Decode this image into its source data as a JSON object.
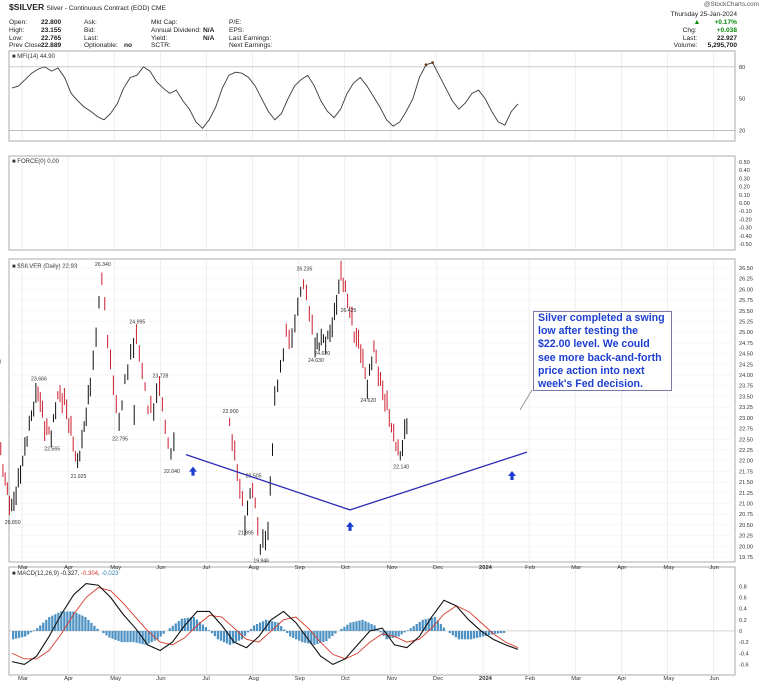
{
  "header": {
    "symbol": "$SILVER",
    "name": "Silver - Continuous Contract (EOD) CME",
    "watermark": "@StockCharts.com",
    "date": "Thursday 25-Jan-2024",
    "quote_left": [
      {
        "label": "Open:",
        "value": "22.800"
      },
      {
        "label": "High:",
        "value": "23.155"
      },
      {
        "label": "Low:",
        "value": "22.765"
      },
      {
        "label": "Prev Close:",
        "value": "22.889"
      }
    ],
    "quote_mid1": [
      "Ask:",
      "Bid:",
      "Last:",
      "Optionable:"
    ],
    "optionable_value": "no",
    "quote_mid2": [
      {
        "label": "Mkt Cap:",
        "value": ""
      },
      {
        "label": "Annual Dividend:",
        "value": "N/A"
      },
      {
        "label": "Yield:",
        "value": "N/A"
      },
      {
        "label": "SCTR:",
        "value": ""
      }
    ],
    "quote_mid3": [
      "P/E:",
      "EPS:",
      "Last Earnings:",
      "Next Earnings:"
    ],
    "quote_right": [
      {
        "label": "",
        "value": "+0.17%"
      },
      {
        "label": "Chg:",
        "value": "+0.038"
      },
      {
        "label": "Last:",
        "value": "22.927"
      },
      {
        "label": "Volume:",
        "value": "5,295,700"
      }
    ]
  },
  "panel_labels": {
    "mfi": "MFI(14) 44.90",
    "force": "FORCE(0) 0.00",
    "price": "$SILVER (Daily) 22.93",
    "macd_name": "MACD(12,26,9)",
    "macd_v1": "-0.327",
    "macd_v2": "-0.304",
    "macd_v3": "-0.023"
  },
  "callout": {
    "text": "Silver completed a swing low after testing the $22.00 level. We could see more back-and-forth price action into next week's Fed decision."
  },
  "chart_data": [
    {
      "type": "line",
      "title": "$SILVER (Daily) 22.93",
      "subtitle": "Silver - Continuous Contract (EOD) CME",
      "x": [
        "Mar",
        "Apr",
        "May",
        "Jun",
        "Jul",
        "Aug",
        "Sep",
        "Oct",
        "Nov",
        "Dec",
        "2024",
        "Feb",
        "Mar",
        "Apr",
        "May",
        "Jun"
      ],
      "ylim": [
        19.75,
        26.5
      ],
      "y_ticks": [
        19.75,
        20.0,
        20.25,
        20.5,
        20.75,
        21.0,
        21.25,
        21.5,
        21.75,
        22.0,
        22.25,
        22.5,
        22.75,
        23.0,
        23.25,
        23.5,
        23.75,
        24.0,
        24.25,
        24.5,
        24.75,
        25.0,
        25.25,
        25.5,
        25.75,
        26.0,
        26.25,
        26.5
      ],
      "price_path": [
        [
          "Mar",
          22.9
        ],
        [
          "Mar",
          21.8
        ],
        [
          "Mar",
          20.6
        ],
        [
          "Mar",
          21.4
        ],
        [
          "Mar",
          19.95
        ],
        [
          "Mar",
          20.3
        ],
        [
          "Apr",
          23.4
        ],
        [
          "Apr",
          24.1
        ],
        [
          "Apr",
          25.0
        ],
        [
          "Apr",
          24.9
        ],
        [
          "Apr",
          25.7
        ],
        [
          "Apr",
          26.235
        ],
        [
          "Apr",
          25.5
        ],
        [
          "Apr",
          24.63
        ],
        [
          "May",
          24.8
        ],
        [
          "May",
          24.82
        ],
        [
          "May",
          25.4
        ],
        [
          "May",
          26.425
        ],
        [
          "May",
          25.8
        ],
        [
          "May",
          25.0
        ],
        [
          "May",
          24.6
        ],
        [
          "Jun",
          23.7
        ],
        [
          "Jun",
          24.62
        ],
        [
          "Jun",
          23.8
        ],
        [
          "Jun",
          23.3
        ],
        [
          "Jun",
          22.6
        ],
        [
          "Jun",
          22.14
        ],
        [
          "Jun",
          22.9
        ],
        [
          "Jul",
          23.3
        ],
        [
          "Jul",
          24.1
        ],
        [
          "Jul",
          24.9
        ],
        [
          "Jul",
          25.475
        ],
        [
          "Jul",
          24.9
        ],
        [
          "Aug",
          24.0
        ],
        [
          "Aug",
          23.4
        ],
        [
          "Aug",
          22.8
        ],
        [
          "Aug",
          22.265
        ],
        [
          "Aug",
          23.0
        ],
        [
          "Aug",
          23.5
        ],
        [
          "Sep",
          24.4
        ],
        [
          "Sep",
          25.0
        ],
        [
          "Sep",
          25.425
        ],
        [
          "Sep",
          24.3
        ],
        [
          "Sep",
          23.2
        ],
        [
          "Sep",
          22.555
        ],
        [
          "Sep",
          23.5
        ],
        [
          "Sep",
          24.06
        ],
        [
          "Oct",
          22.5
        ],
        [
          "Oct",
          21.5
        ],
        [
          "Oct",
          20.85
        ],
        [
          "Oct",
          21.5
        ],
        [
          "Oct",
          22.3
        ],
        [
          "Oct",
          23.1
        ],
        [
          "Oct",
          23.666
        ],
        [
          "Nov",
          22.8
        ],
        [
          "Nov",
          22.565
        ],
        [
          "Nov",
          23.5
        ],
        [
          "Nov",
          23.4
        ],
        [
          "Nov",
          22.7
        ],
        [
          "Nov",
          21.925
        ],
        [
          "Nov",
          22.8
        ],
        [
          "Dec",
          23.8
        ],
        [
          "Dec",
          25.0
        ],
        [
          "Dec",
          26.34
        ],
        [
          "Dec",
          24.8
        ],
        [
          "Dec",
          23.7
        ],
        [
          "Dec",
          22.795
        ],
        [
          "Dec",
          23.8
        ],
        [
          "Dec",
          24.5
        ],
        [
          "2024",
          24.995
        ],
        [
          "2024",
          24.2
        ],
        [
          "2024",
          23.3
        ],
        [
          "2024",
          23.2
        ],
        [
          "2024",
          23.728
        ],
        [
          "2024",
          22.7
        ],
        [
          "2024",
          22.04
        ],
        [
          "2024",
          22.93
        ]
      ],
      "annotations": [
        "22.900",
        "21.995",
        "20.505",
        "19.946",
        "26.235",
        "24.630",
        "24.620",
        "26.425",
        "24.620",
        "22.140",
        "25.475",
        "22.265",
        "25.425",
        "22.555",
        "24.060",
        "20.850",
        "23.666",
        "22.565",
        "21.925",
        "26.340",
        "22.795",
        "24.995",
        "23.728",
        "22.040"
      ],
      "trendline": [
        [
          "Jun",
          22.14
        ],
        [
          "Oct",
          20.85
        ],
        [
          "Feb",
          22.2
        ]
      ],
      "markers": [
        "up arrow at 22.140",
        "up arrow at 20.850",
        "up arrow at 22.040"
      ]
    },
    {
      "type": "line",
      "title": "MFI(14) 44.90",
      "ylim": [
        10,
        95
      ],
      "y_ticks": [
        20,
        50,
        80
      ],
      "series": [
        {
          "name": "MFI(14)",
          "values": [
            60,
            62,
            68,
            74,
            78,
            80,
            76,
            79,
            70,
            55,
            48,
            42,
            38,
            33,
            30,
            36,
            45,
            60,
            70,
            72,
            80,
            76,
            66,
            60,
            55,
            58,
            48,
            40,
            28,
            22,
            30,
            42,
            60,
            72,
            75,
            74,
            70,
            62,
            50,
            38,
            30,
            36,
            50,
            62,
            68,
            72,
            62,
            48,
            38,
            32,
            40,
            55,
            65,
            70,
            62,
            52,
            42,
            30,
            24,
            28,
            38,
            50,
            70,
            82,
            84,
            72,
            60,
            48,
            40,
            46,
            55,
            58,
            50,
            38,
            28,
            25,
            38,
            45
          ]
        }
      ]
    },
    {
      "type": "line",
      "title": "FORCE(0) 0.00",
      "ylim": [
        -0.5,
        0.5
      ],
      "y_ticks": [
        0.5,
        0.4,
        0.3,
        0.2,
        0.1,
        0.0,
        -0.1,
        -0.2,
        -0.3,
        -0.4,
        -0.5
      ]
    },
    {
      "type": "line",
      "title": "MACD(12,26,9) -0.327, -0.304, -0.023",
      "ylim": [
        -0.7,
        0.95
      ],
      "y_ticks": [
        0.8,
        0.6,
        0.4,
        0.2,
        0,
        -0.2,
        -0.4,
        -0.6
      ],
      "series": [
        {
          "name": "MACD",
          "values": [
            -0.55,
            -0.6,
            -0.45,
            -0.1,
            0.3,
            0.65,
            0.85,
            0.82,
            0.6,
            0.3,
            0.05,
            -0.25,
            -0.35,
            -0.2,
            0.1,
            0.35,
            0.35,
            0.1,
            -0.2,
            -0.3,
            -0.1,
            0.2,
            0.35,
            0.15,
            -0.15,
            -0.45,
            -0.6,
            -0.5,
            -0.25,
            0.0,
            0.05,
            -0.25,
            -0.3,
            -0.1,
            0.25,
            0.55,
            0.45,
            0.2,
            0.0,
            -0.15,
            -0.25,
            -0.33
          ]
        },
        {
          "name": "Signal",
          "values": [
            -0.4,
            -0.5,
            -0.5,
            -0.35,
            -0.05,
            0.3,
            0.6,
            0.78,
            0.72,
            0.5,
            0.25,
            0.0,
            -0.2,
            -0.25,
            -0.12,
            0.1,
            0.28,
            0.25,
            0.05,
            -0.15,
            -0.2,
            0.0,
            0.2,
            0.25,
            0.05,
            -0.2,
            -0.42,
            -0.5,
            -0.4,
            -0.2,
            -0.05,
            -0.1,
            -0.2,
            -0.15,
            0.05,
            0.3,
            0.45,
            0.35,
            0.15,
            -0.05,
            -0.2,
            -0.3
          ]
        },
        {
          "name": "Histogram",
          "values": [
            -0.15,
            -0.1,
            0.05,
            0.25,
            0.35,
            0.35,
            0.25,
            0.04,
            -0.12,
            -0.2,
            -0.2,
            -0.25,
            -0.15,
            0.05,
            0.22,
            0.25,
            0.07,
            -0.15,
            -0.25,
            -0.15,
            0.1,
            0.2,
            0.15,
            -0.1,
            -0.2,
            -0.25,
            -0.18,
            0.0,
            0.15,
            0.2,
            0.1,
            -0.15,
            -0.1,
            0.05,
            0.2,
            0.25,
            0.0,
            -0.15,
            -0.15,
            -0.1,
            -0.05,
            -0.03
          ]
        }
      ]
    }
  ]
}
